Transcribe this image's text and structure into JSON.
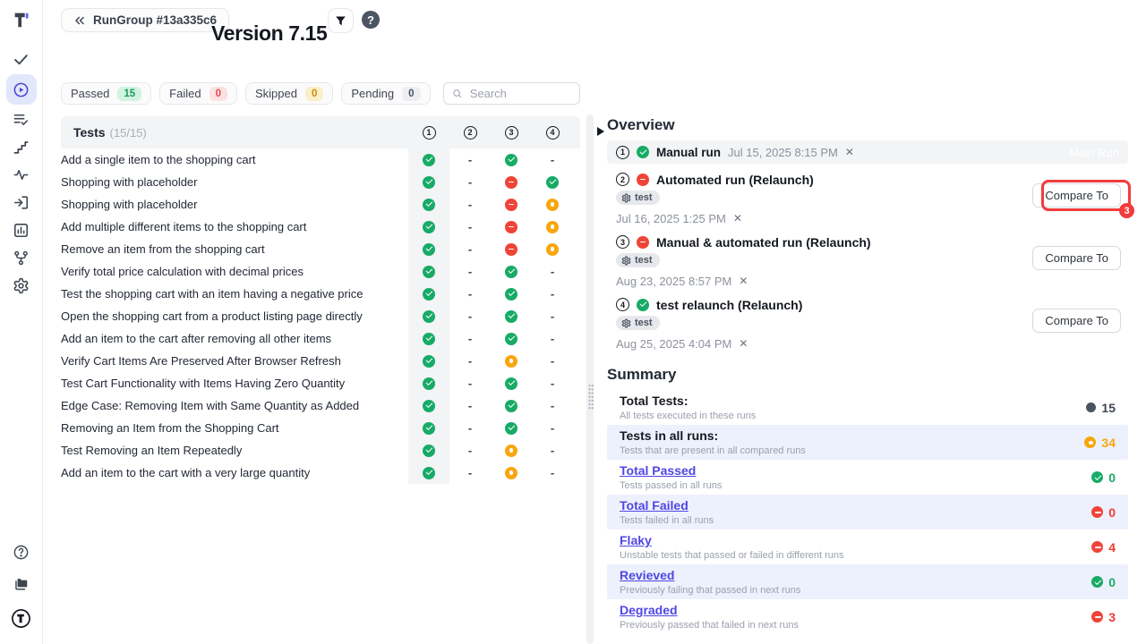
{
  "app": {
    "back_button": "RunGroup #13a335c6",
    "title": "Version 7.15"
  },
  "sidebar": {
    "icons": [
      "tests-check",
      "runs-play",
      "test-plans",
      "steps",
      "pulse",
      "import",
      "analytics",
      "branches",
      "settings"
    ],
    "bottom_icons": [
      "help",
      "projects",
      "profile"
    ],
    "active_icon": "runs-play"
  },
  "filters": [
    {
      "label": "Passed",
      "count": "15",
      "color": "green"
    },
    {
      "label": "Failed",
      "count": "0",
      "color": "red"
    },
    {
      "label": "Skipped",
      "count": "0",
      "color": "yellow"
    },
    {
      "label": "Pending",
      "count": "0",
      "color": "gray"
    }
  ],
  "search": {
    "placeholder": "Search"
  },
  "table": {
    "title": "Tests",
    "counter": "(15/15)",
    "columns": [
      "1",
      "2",
      "3",
      "4"
    ],
    "rows": [
      {
        "name": "Add a single item to the shopping cart",
        "statuses": [
          "passed",
          "none",
          "passed",
          "none"
        ]
      },
      {
        "name": "Shopping with placeholder",
        "statuses": [
          "passed",
          "none",
          "failed",
          "passed"
        ]
      },
      {
        "name": "Shopping with placeholder",
        "statuses": [
          "passed",
          "none",
          "failed",
          "skipped"
        ]
      },
      {
        "name": "Add multiple different items to the shopping cart",
        "statuses": [
          "passed",
          "none",
          "failed",
          "skipped"
        ]
      },
      {
        "name": "Remove an item from the shopping cart",
        "statuses": [
          "passed",
          "none",
          "failed",
          "skipped"
        ]
      },
      {
        "name": "Verify total price calculation with decimal prices",
        "statuses": [
          "passed",
          "none",
          "passed",
          "none"
        ]
      },
      {
        "name": "Test the shopping cart with an item having a negative price",
        "statuses": [
          "passed",
          "none",
          "passed",
          "none"
        ]
      },
      {
        "name": "Open the shopping cart from a product listing page directly",
        "statuses": [
          "passed",
          "none",
          "passed",
          "none"
        ]
      },
      {
        "name": "Add an item to the cart after removing all other items",
        "statuses": [
          "passed",
          "none",
          "passed",
          "none"
        ]
      },
      {
        "name": "Verify Cart Items Are Preserved After Browser Refresh",
        "statuses": [
          "passed",
          "none",
          "skipped",
          "none"
        ]
      },
      {
        "name": "Test Cart Functionality with Items Having Zero Quantity",
        "statuses": [
          "passed",
          "none",
          "passed",
          "none"
        ]
      },
      {
        "name": "Edge Case: Removing Item with Same Quantity as Added",
        "statuses": [
          "passed",
          "none",
          "passed",
          "none"
        ]
      },
      {
        "name": "Removing an Item from the Shopping Cart",
        "statuses": [
          "passed",
          "none",
          "passed",
          "none"
        ]
      },
      {
        "name": "Test Removing an Item Repeatedly",
        "statuses": [
          "passed",
          "none",
          "skipped",
          "none"
        ]
      },
      {
        "name": "Add an item to the cart with a very large quantity",
        "statuses": [
          "passed",
          "none",
          "skipped",
          "none"
        ]
      }
    ]
  },
  "overview": {
    "title": "Overview",
    "runs": [
      {
        "number": "1",
        "status": "passed",
        "name": "Manual run",
        "date": "Jul 15, 2025 8:15 PM",
        "badge": "Main Run"
      },
      {
        "number": "2",
        "status": "failed",
        "name": "Automated run (Relaunch)",
        "tag": "test",
        "date": "Jul 16, 2025 1:25 PM",
        "compare": "Compare To"
      },
      {
        "number": "3",
        "status": "failed",
        "name": "Manual & automated run (Relaunch)",
        "tag": "test",
        "date": "Aug 23, 2025 8:57 PM",
        "compare": "Compare To"
      },
      {
        "number": "4",
        "status": "passed",
        "name": "test relaunch (Relaunch)",
        "tag": "test",
        "date": "Aug 25, 2025 4:04 PM",
        "compare": "Compare To"
      }
    ]
  },
  "summary": {
    "title": "Summary",
    "rows": [
      {
        "label": "Total Tests:",
        "link": false,
        "desc": "All tests executed in these runs",
        "value": "15",
        "icon": "total",
        "highlight": false
      },
      {
        "label": "Tests in all runs:",
        "link": false,
        "desc": "Tests that are present in all compared runs",
        "value": "34",
        "icon": "skipped",
        "highlight": true
      },
      {
        "label": "Total Passed",
        "link": true,
        "desc": "Tests passed in all runs",
        "value": "0",
        "icon": "passed",
        "highlight": false
      },
      {
        "label": "Total Failed",
        "link": true,
        "desc": "Tests failed in all runs",
        "value": "0",
        "icon": "failed",
        "highlight": true
      },
      {
        "label": "Flaky",
        "link": true,
        "desc": "Unstable tests that passed or failed in different runs",
        "value": "4",
        "icon": "failed",
        "highlight": false
      },
      {
        "label": "Revieved",
        "link": true,
        "desc": "Previously failing that passed in next runs",
        "value": "0",
        "icon": "passed",
        "highlight": true
      },
      {
        "label": "Degraded",
        "link": true,
        "desc": "Previously passed that failed in next runs",
        "value": "3",
        "icon": "failed",
        "highlight": false
      }
    ]
  },
  "annotation": {
    "number": "3",
    "color": "#f23b3b"
  },
  "colors": {
    "accent": "#4f46e5",
    "passed": "#17ab66",
    "failed": "#f04438",
    "skipped": "#f7a60d",
    "link": "#4f46e5",
    "highlight_row": "#edf1fd",
    "header_bg": "#f3f4f6"
  }
}
